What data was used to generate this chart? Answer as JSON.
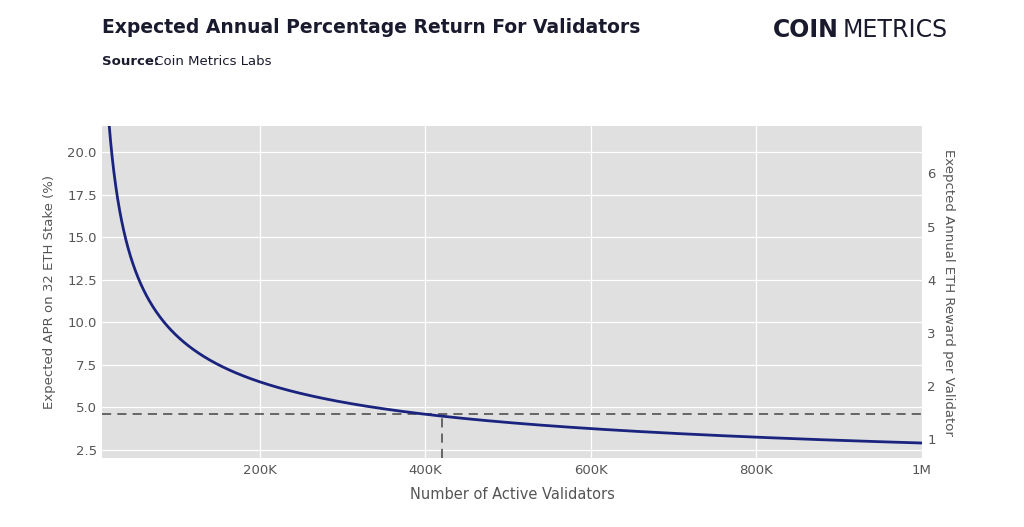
{
  "title": "Expected Annual Percentage Return For Validators",
  "subtitle_bold": "Source:",
  "subtitle_normal": " Coin Metrics Labs",
  "xlabel": "Number of Active Validators",
  "ylabel_left": "Expected APR on 32 ETH Stake (%)",
  "ylabel_right": "Exepcted Annual ETH Reward per Validator",
  "line_color": "#1a237e",
  "line_width": 2.0,
  "dashed_line_y": 4.6,
  "dashed_line_color": "#444444",
  "dashed_vline_x": 420000,
  "x_min": 10000,
  "x_max": 1000000,
  "y_left_min": 2.0,
  "y_left_max": 21.5,
  "background_color": "#e0e0e0",
  "outer_background": "#ffffff",
  "title_color": "#1a1a2e",
  "axis_label_color": "#555555",
  "tick_color": "#555555",
  "coinmetrics_bold": "COIN",
  "coinmetrics_normal": "METRICS",
  "coinmetrics_color": "#1a1a2e",
  "x_ticks": [
    200000,
    400000,
    600000,
    800000,
    1000000
  ],
  "x_tick_labels": [
    "200K",
    "400K",
    "600K",
    "800K",
    "1M"
  ],
  "y_left_ticks": [
    2.5,
    5.0,
    7.5,
    10.0,
    12.5,
    15.0,
    17.5,
    20.0
  ],
  "y_right_ticks": [
    1,
    2,
    3,
    4,
    5,
    6
  ]
}
